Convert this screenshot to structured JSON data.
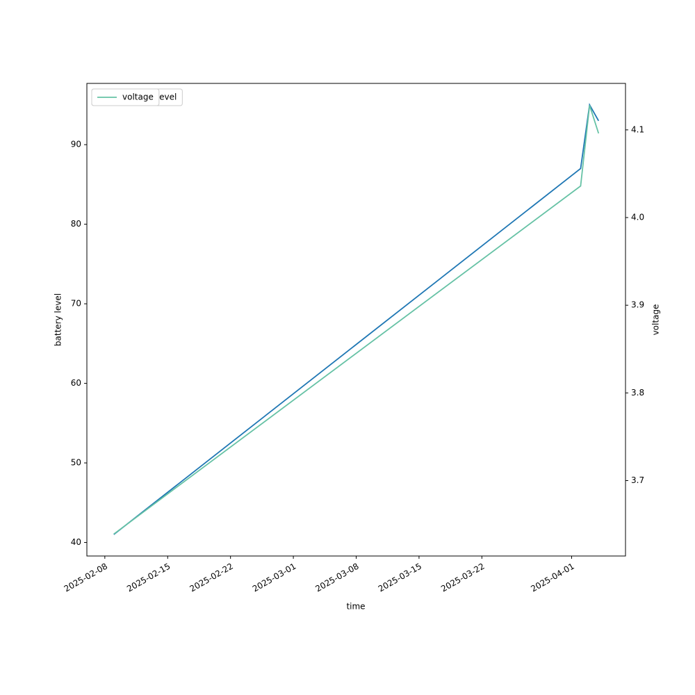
{
  "chart_data": {
    "type": "line",
    "x": [
      "2025-02-09",
      "2025-04-02",
      "2025-04-03",
      "2025-04-04"
    ],
    "xlim": [
      "2025-02-06",
      "2025-04-07"
    ],
    "xticks": [
      "2025-02-08",
      "2025-02-15",
      "2025-02-22",
      "2025-03-01",
      "2025-03-08",
      "2025-03-15",
      "2025-03-22",
      "2025-04-01"
    ],
    "xlabel": "time",
    "ylabel": "battery level",
    "y2label": "voltage",
    "ylim": [
      38.3,
      97.7
    ],
    "yticks": [
      40,
      50,
      60,
      70,
      80,
      90
    ],
    "y2lim": [
      3.614,
      4.153
    ],
    "y2ticks": [
      3.7,
      3.8,
      3.9,
      4.0,
      4.1
    ],
    "legend": "upper left",
    "series": [
      {
        "name": "battery_level",
        "color": "#1f77b4",
        "values": [
          41,
          87,
          95,
          93
        ]
      },
      {
        "name": "voltage",
        "color": "#66c2a5",
        "axis": "y2",
        "values": [
          3.639,
          4.036,
          4.128,
          4.096
        ]
      }
    ]
  }
}
